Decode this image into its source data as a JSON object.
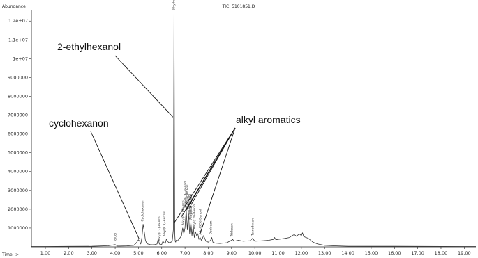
{
  "chart_data": {
    "type": "line",
    "title": "TIC: 5101851.D",
    "ylabel": "Abundance",
    "xlabel": "Time-->",
    "xlim": [
      0.4,
      19.5
    ],
    "ylim": [
      0,
      12600000
    ],
    "xticks": [
      "1.00",
      "2.00",
      "3.00",
      "4.00",
      "5.00",
      "6.00",
      "7.00",
      "8.00",
      "9.00",
      "10.00",
      "11.00",
      "12.00",
      "13.00",
      "14.00",
      "15.00",
      "16.00",
      "17.00",
      "18.00",
      "19.00"
    ],
    "yticks": [
      {
        "v": 1000000,
        "label": "1000000"
      },
      {
        "v": 2000000,
        "label": "2000000"
      },
      {
        "v": 3000000,
        "label": "3000000"
      },
      {
        "v": 4000000,
        "label": "4000000"
      },
      {
        "v": 5000000,
        "label": "5000000"
      },
      {
        "v": 6000000,
        "label": "6000000"
      },
      {
        "v": 7000000,
        "label": "7000000"
      },
      {
        "v": 8000000,
        "label": "8000000"
      },
      {
        "v": 9000000,
        "label": "9000000"
      },
      {
        "v": 10000000,
        "label": "1e+07"
      },
      {
        "v": 11000000,
        "label": "1.1e+07"
      },
      {
        "v": 12000000,
        "label": "1.2e+07"
      }
    ],
    "series": [
      {
        "x": [
          0.4,
          1.0,
          2.0,
          3.0,
          3.7,
          4.0,
          4.1,
          4.2,
          4.5,
          4.8,
          4.9,
          5.0,
          5.05,
          5.1,
          5.15,
          5.2,
          5.25,
          5.3,
          5.35,
          5.4,
          5.5,
          5.6,
          5.7,
          5.8,
          5.85,
          5.9,
          5.95,
          6.0,
          6.05,
          6.1,
          6.15,
          6.2,
          6.3,
          6.4,
          6.45,
          6.5,
          6.53,
          6.56,
          6.58,
          6.6,
          6.62,
          6.65,
          6.7,
          6.8,
          6.85,
          6.9,
          6.95,
          7.0,
          7.05,
          7.1,
          7.15,
          7.2,
          7.25,
          7.3,
          7.35,
          7.4,
          7.45,
          7.5,
          7.55,
          7.6,
          7.65,
          7.7,
          7.75,
          7.8,
          7.9,
          8.0,
          8.1,
          8.15,
          8.2,
          8.3,
          8.5,
          8.8,
          9.0,
          9.05,
          9.1,
          9.3,
          9.5,
          9.8,
          9.9,
          9.95,
          10.0,
          10.3,
          10.6,
          10.8,
          10.85,
          10.9,
          11.0,
          11.3,
          11.5,
          11.6,
          11.7,
          11.8,
          11.9,
          12.0,
          12.05,
          12.1,
          12.2,
          12.3,
          12.4,
          12.5,
          12.7,
          13.0,
          13.5,
          14.0,
          15.0,
          16.0,
          17.0,
          18.0,
          19.0,
          19.5
        ],
        "y": [
          20000,
          20000,
          25000,
          30000,
          60000,
          120000,
          40000,
          40000,
          50000,
          80000,
          200000,
          380000,
          300000,
          150000,
          500000,
          1200000,
          800000,
          350000,
          200000,
          150000,
          120000,
          110000,
          120000,
          150000,
          450000,
          150000,
          120000,
          130000,
          300000,
          220000,
          180000,
          400000,
          220000,
          250000,
          300000,
          900000,
          12400000,
          700000,
          300000,
          250000,
          350000,
          300000,
          350000,
          500000,
          600000,
          1000000,
          700000,
          1000000,
          2000000,
          900000,
          1800000,
          700000,
          1300000,
          600000,
          1100000,
          500000,
          800000,
          600000,
          700000,
          400000,
          500000,
          350000,
          450000,
          600000,
          300000,
          250000,
          350000,
          500000,
          250000,
          200000,
          180000,
          220000,
          350000,
          400000,
          300000,
          350000,
          300000,
          330000,
          450000,
          380000,
          300000,
          320000,
          350000,
          400000,
          500000,
          380000,
          400000,
          450000,
          500000,
          600000,
          650000,
          550000,
          700000,
          600000,
          750000,
          550000,
          500000,
          450000,
          350000,
          250000,
          150000,
          80000,
          50000,
          35000,
          30000,
          28000,
          25000,
          22000,
          20000,
          18000
        ]
      }
    ],
    "peak_labels": [
      {
        "x": 4.05,
        "label": "Toluol"
      },
      {
        "x": 5.22,
        "label": "Cyclohexanon"
      },
      {
        "x": 5.95,
        "label": "Alkyl(C3)-Benzol"
      },
      {
        "x": 6.15,
        "label": "Alkyl(C3)-Benzol"
      },
      {
        "x": 6.56,
        "label": "Ethylhexanol"
      },
      {
        "x": 6.97,
        "label": "Alkyl(C4)-Benzol"
      },
      {
        "x": 7.05,
        "label": "Alkyl(C4)-Benzol"
      },
      {
        "x": 7.12,
        "label": "Alkyl(C4)-Benzol"
      },
      {
        "x": 7.22,
        "label": "Alkyl(C4)-Benzol"
      },
      {
        "x": 7.3,
        "label": "Alkyl(C4)-Benzol"
      },
      {
        "x": 7.45,
        "label": "Alkyl(C4)-Benzol"
      },
      {
        "x": 7.7,
        "label": "Alkyl(C5)-Benzol"
      },
      {
        "x": 8.15,
        "label": "Dodecan"
      },
      {
        "x": 9.05,
        "label": "Tridecan"
      },
      {
        "x": 9.95,
        "label": "Tetradecan"
      }
    ],
    "annotations": [
      {
        "text": "2-ethylhexanol",
        "target_x": 6.48,
        "target_y": 6900000
      },
      {
        "text": "cyclohexanon",
        "target_x": 5.03,
        "target_y": 420000
      },
      {
        "text": "alkyl aromatics",
        "targets": [
          [
            6.55,
            1300000
          ],
          [
            6.85,
            1600000
          ],
          [
            7.05,
            1950000
          ],
          [
            7.2,
            2100000
          ],
          [
            7.65,
            700000
          ]
        ]
      }
    ]
  }
}
